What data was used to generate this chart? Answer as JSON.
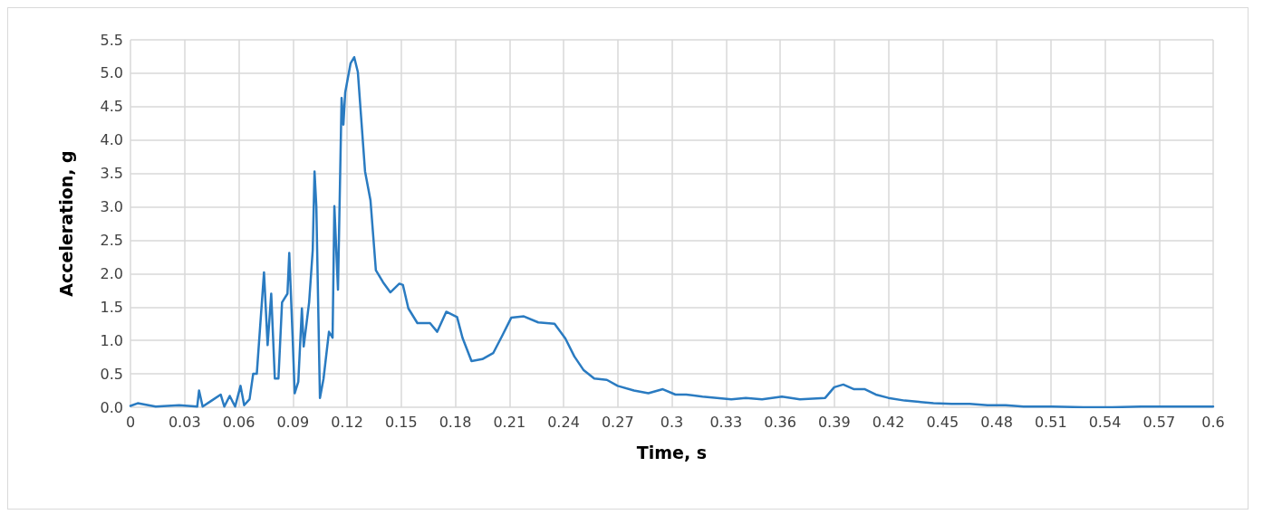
{
  "chart_data": {
    "type": "line",
    "xlabel": "Time, s",
    "ylabel": "Acceleration, g",
    "xlim": [
      0,
      0.6
    ],
    "xticks": [
      0,
      0.03,
      0.06,
      0.09,
      0.12,
      0.15,
      0.18,
      0.21,
      0.24,
      0.27,
      0.3,
      0.33,
      0.36,
      0.39,
      0.42,
      0.45,
      0.48,
      0.51,
      0.54,
      0.57,
      0.6
    ],
    "ylim": [
      0,
      5.5
    ],
    "yticks": [
      {
        "value": 0,
        "label": "0.0"
      },
      {
        "value": 0.5,
        "label": "0.5"
      },
      {
        "value": 1,
        "label": "1.0"
      },
      {
        "value": 1.5,
        "label": "1.5"
      },
      {
        "value": 2,
        "label": "2.0"
      },
      {
        "value": 2.5,
        "label": "2.5"
      },
      {
        "value": 3,
        "label": "3.0"
      },
      {
        "value": 3.5,
        "label": "3.5"
      },
      {
        "value": 4,
        "label": "4.0"
      },
      {
        "value": 4.5,
        "label": "4.5"
      },
      {
        "value": 5,
        "label": "5.0"
      },
      {
        "value": 5.5,
        "label": "5.5"
      }
    ],
    "grid": true,
    "marker": "none",
    "line_style": "solid",
    "series": [
      {
        "color": "#2a7bc1",
        "x": [
          0,
          0.004,
          0.014,
          0.027,
          0.037,
          0.038,
          0.04,
          0.045,
          0.05,
          0.052,
          0.055,
          0.058,
          0.061,
          0.063,
          0.066,
          0.068,
          0.07,
          0.074,
          0.076,
          0.078,
          0.08,
          0.082,
          0.084,
          0.087,
          0.088,
          0.09,
          0.091,
          0.093,
          0.095,
          0.096,
          0.099,
          0.101,
          0.102,
          0.103,
          0.105,
          0.107,
          0.11,
          0.112,
          0.113,
          0.115,
          0.117,
          0.118,
          0.119,
          0.122,
          0.124,
          0.126,
          0.13,
          0.133,
          0.136,
          0.14,
          0.144,
          0.149,
          0.151,
          0.154,
          0.159,
          0.166,
          0.17,
          0.175,
          0.181,
          0.184,
          0.189,
          0.195,
          0.201,
          0.206,
          0.211,
          0.218,
          0.226,
          0.235,
          0.241,
          0.246,
          0.251,
          0.257,
          0.264,
          0.27,
          0.279,
          0.287,
          0.295,
          0.302,
          0.308,
          0.317,
          0.325,
          0.333,
          0.341,
          0.35,
          0.361,
          0.371,
          0.385,
          0.39,
          0.395,
          0.401,
          0.407,
          0.413,
          0.42,
          0.429,
          0.437,
          0.445,
          0.455,
          0.465,
          0.475,
          0.485,
          0.495,
          0.511,
          0.528,
          0.544,
          0.56,
          0.577,
          0.6
        ],
        "values": [
          0.02,
          0.06,
          0.01,
          0.03,
          0.01,
          0.25,
          0.01,
          0.1,
          0.19,
          0.01,
          0.17,
          0.01,
          0.32,
          0.03,
          0.12,
          0.5,
          0.5,
          2.02,
          0.93,
          1.7,
          0.43,
          0.43,
          1.57,
          1.7,
          2.31,
          0.95,
          0.21,
          0.38,
          1.48,
          0.91,
          1.57,
          2.35,
          3.53,
          3.01,
          0.14,
          0.43,
          1.13,
          1.04,
          3.01,
          1.76,
          4.63,
          4.23,
          4.71,
          5.15,
          5.24,
          5.02,
          3.53,
          3.1,
          2.05,
          1.87,
          1.72,
          1.85,
          1.83,
          1.48,
          1.26,
          1.26,
          1.13,
          1.43,
          1.35,
          1.04,
          0.69,
          0.72,
          0.81,
          1.07,
          1.34,
          1.36,
          1.27,
          1.25,
          1.03,
          0.76,
          0.56,
          0.43,
          0.41,
          0.32,
          0.25,
          0.21,
          0.27,
          0.19,
          0.19,
          0.16,
          0.14,
          0.12,
          0.14,
          0.12,
          0.16,
          0.12,
          0.14,
          0.3,
          0.34,
          0.27,
          0.27,
          0.19,
          0.14,
          0.1,
          0.08,
          0.06,
          0.05,
          0.05,
          0.03,
          0.03,
          0.01,
          0.01,
          0,
          0,
          0.01,
          0.01,
          0.01
        ]
      }
    ]
  }
}
